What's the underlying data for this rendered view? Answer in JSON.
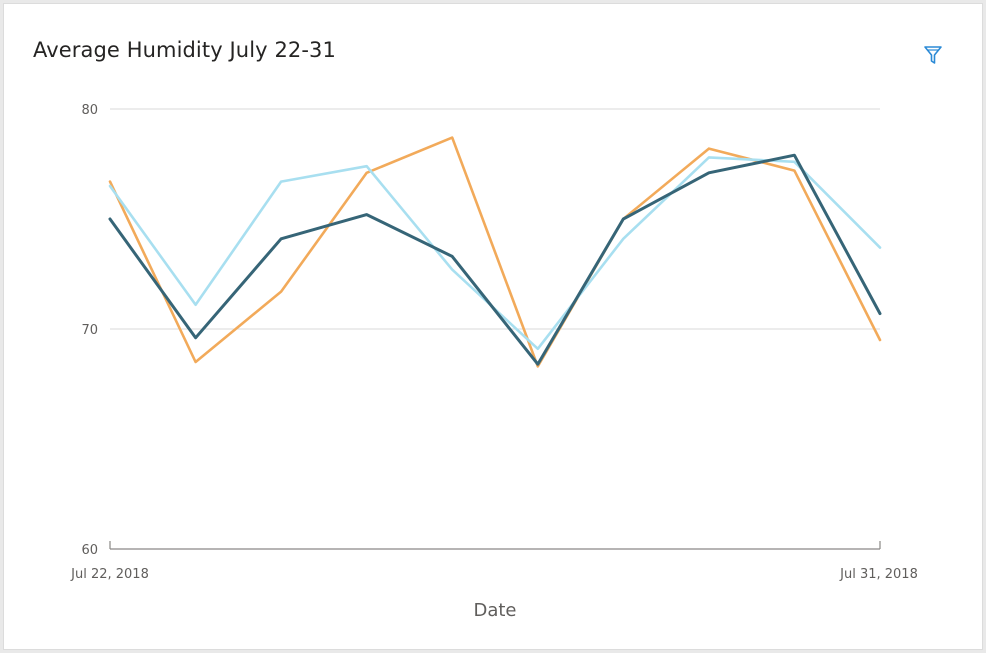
{
  "visual": {
    "title": "Average Humidity July 22-31",
    "filter_icon": "filter-icon"
  },
  "chart_data": {
    "type": "line",
    "title": "Average Humidity July 22-31",
    "xlabel": "Date",
    "ylabel": "",
    "x": [
      "2018-07-22",
      "2018-07-23",
      "2018-07-24",
      "2018-07-25",
      "2018-07-26",
      "2018-07-27",
      "2018-07-28",
      "2018-07-29",
      "2018-07-30",
      "2018-07-31"
    ],
    "x_tick_labels": [
      "Jul 22, 2018",
      "Jul 31, 2018"
    ],
    "ylim": [
      60,
      80
    ],
    "y_ticks": [
      60,
      70,
      80
    ],
    "grid": true,
    "legend": "none",
    "series": [
      {
        "color": "#f2aa5a",
        "values": [
          76.7,
          68.5,
          71.7,
          77.1,
          78.7,
          68.3,
          75.0,
          78.2,
          77.2,
          69.5
        ]
      },
      {
        "color": "#a8dff0",
        "values": [
          76.5,
          71.1,
          76.7,
          77.4,
          72.7,
          69.1,
          74.1,
          77.8,
          77.6,
          73.7
        ]
      },
      {
        "color": "#366577",
        "values": [
          75.0,
          69.6,
          74.1,
          75.2,
          73.3,
          68.4,
          75.0,
          77.1,
          77.9,
          70.7
        ]
      }
    ]
  }
}
